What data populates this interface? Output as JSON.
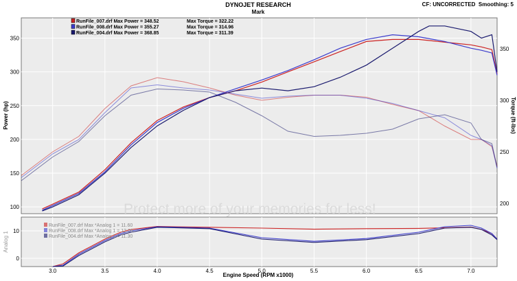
{
  "header": {
    "title": "DYNOJET RESEARCH",
    "subtitle": "Mark",
    "info": "CF: UNCORRECTED  Smoothing: 5"
  },
  "watermark": "Protect more of your memories for less!",
  "colors": {
    "run_007": "#cc2222",
    "run_008": "#3a3acc",
    "run_004": "#1a1a6e",
    "background": "#ffffff",
    "plot_bg": "#ececec",
    "grid": "#ffffff",
    "frame": "#777777"
  },
  "chart_data": [
    {
      "type": "line",
      "title": "DYNOJET RESEARCH",
      "xlabel": "Engine Speed (RPM x1000)",
      "ylabel": "Power (hp)",
      "y2label": "Torque (ft-lbs)",
      "xlim": [
        2.7,
        7.25
      ],
      "ylim": [
        90,
        380
      ],
      "y2lim": [
        190,
        380
      ],
      "x_ticks": [
        3.0,
        3.5,
        4.0,
        4.5,
        5.0,
        5.5,
        6.0,
        6.5,
        7.0
      ],
      "y_ticks": [
        100,
        150,
        200,
        250,
        300,
        350
      ],
      "y2_ticks": [
        200,
        250,
        300,
        350
      ],
      "grid": true,
      "legend": [
        {
          "label": "RunFile_007.drf Max Power = 348.52",
          "torque": "Max Torque = 322.22"
        },
        {
          "label": "RunFile_008.drf Max Power = 355.27",
          "torque": "Max Torque = 314.96"
        },
        {
          "label": "RunFile_004.drf Max Power = 368.85",
          "torque": "Max Torque = 311.39"
        }
      ],
      "legend_position": "top-left",
      "series": [
        {
          "name": "RunFile_007.drf",
          "kind": "Power",
          "axis": "left",
          "x": [
            2.9,
            3.0,
            3.25,
            3.5,
            3.75,
            4.0,
            4.25,
            4.5,
            4.75,
            5.0,
            5.25,
            5.5,
            5.75,
            6.0,
            6.25,
            6.5,
            6.75,
            7.0,
            7.1,
            7.2,
            7.25
          ],
          "y": [
            97,
            104,
            122,
            155,
            195,
            228,
            248,
            262,
            272,
            285,
            300,
            315,
            330,
            345,
            348,
            348,
            344,
            340,
            337,
            333,
            297
          ]
        },
        {
          "name": "RunFile_008.drf",
          "kind": "Power",
          "axis": "left",
          "x": [
            2.9,
            3.0,
            3.25,
            3.5,
            3.75,
            4.0,
            4.25,
            4.5,
            4.75,
            5.0,
            5.25,
            5.5,
            5.75,
            6.0,
            6.25,
            6.5,
            6.75,
            7.0,
            7.1,
            7.2,
            7.25
          ],
          "y": [
            95,
            102,
            120,
            152,
            192,
            225,
            246,
            262,
            275,
            288,
            302,
            318,
            335,
            348,
            355,
            352,
            345,
            335,
            332,
            328,
            295
          ]
        },
        {
          "name": "RunFile_004.drf",
          "kind": "Power",
          "axis": "left",
          "x": [
            2.9,
            3.0,
            3.25,
            3.5,
            3.75,
            4.0,
            4.25,
            4.5,
            4.75,
            5.0,
            5.25,
            5.5,
            5.75,
            6.0,
            6.25,
            6.5,
            6.6,
            6.75,
            7.0,
            7.1,
            7.2,
            7.25
          ],
          "y": [
            94,
            100,
            118,
            150,
            188,
            220,
            243,
            262,
            272,
            276,
            272,
            278,
            292,
            310,
            335,
            360,
            368,
            368,
            360,
            350,
            355,
            300
          ]
        },
        {
          "name": "RunFile_007.drf",
          "kind": "Torque",
          "axis": "right",
          "x": [
            2.7,
            3.0,
            3.25,
            3.5,
            3.75,
            4.0,
            4.25,
            4.5,
            4.75,
            5.0,
            5.25,
            5.5,
            5.75,
            6.0,
            6.25,
            6.5,
            6.75,
            7.0,
            7.1,
            7.2,
            7.25
          ],
          "y": [
            227,
            250,
            265,
            292,
            314,
            322,
            318,
            312,
            305,
            300,
            303,
            305,
            305,
            303,
            296,
            290,
            275,
            262,
            262,
            255,
            236
          ]
        },
        {
          "name": "RunFile_008.drf",
          "kind": "Torque",
          "axis": "right",
          "x": [
            2.7,
            3.0,
            3.25,
            3.5,
            3.75,
            4.0,
            4.25,
            4.5,
            4.75,
            5.0,
            5.25,
            5.5,
            5.75,
            6.0,
            6.25,
            6.5,
            6.75,
            7.0,
            7.1,
            7.2,
            7.25
          ],
          "y": [
            225,
            248,
            262,
            288,
            312,
            315,
            312,
            310,
            306,
            302,
            304,
            305,
            305,
            302,
            297,
            290,
            283,
            266,
            262,
            256,
            234
          ]
        },
        {
          "name": "RunFile_004.drf",
          "kind": "Torque",
          "axis": "right",
          "x": [
            2.7,
            3.0,
            3.25,
            3.5,
            3.75,
            4.0,
            4.25,
            4.5,
            4.75,
            5.0,
            5.25,
            5.5,
            5.75,
            6.0,
            6.25,
            6.5,
            6.75,
            7.0,
            7.1,
            7.2,
            7.25
          ],
          "y": [
            222,
            245,
            260,
            285,
            305,
            311,
            310,
            308,
            298,
            285,
            270,
            265,
            266,
            268,
            272,
            282,
            286,
            278,
            262,
            258,
            235
          ]
        }
      ]
    },
    {
      "type": "line",
      "ylabel": "Analog 1",
      "xlim": [
        2.7,
        7.25
      ],
      "ylim": [
        -3,
        15
      ],
      "y_ticks": [
        0,
        10
      ],
      "grid": true,
      "legend": [
        {
          "label": "RunFile_007.drf Max *Analog 1 = 11.60"
        },
        {
          "label": "RunFile_008.drf Max *Analog 1 = 12.09"
        },
        {
          "label": "RunFile_004.drf Max *Analog 1 = 11.30"
        }
      ],
      "legend_position": "top-left",
      "series": [
        {
          "name": "RunFile_007.drf",
          "x": [
            3.0,
            3.1,
            3.25,
            3.5,
            3.65,
            3.75,
            4.0,
            4.5,
            5.0,
            5.5,
            6.0,
            6.5,
            6.75,
            7.0,
            7.1,
            7.2,
            7.25
          ],
          "y": [
            -3,
            -2,
            2,
            7,
            9.5,
            10.5,
            11.6,
            11.3,
            11.0,
            10.6,
            10.8,
            10.9,
            11.1,
            11.4,
            10.5,
            9,
            7
          ]
        },
        {
          "name": "RunFile_008.drf",
          "x": [
            3.0,
            3.1,
            3.25,
            3.5,
            3.65,
            3.75,
            4.0,
            4.5,
            5.0,
            5.5,
            6.0,
            6.5,
            6.75,
            7.0,
            7.1,
            7.2,
            7.25
          ],
          "y": [
            -3,
            -2.5,
            1.5,
            6.5,
            9,
            10,
            11.5,
            11.0,
            7.5,
            6.2,
            7.2,
            9.5,
            11.5,
            12.0,
            11.0,
            9,
            7
          ]
        },
        {
          "name": "RunFile_004.drf",
          "x": [
            3.0,
            3.1,
            3.25,
            3.5,
            3.65,
            3.75,
            4.0,
            4.5,
            5.0,
            5.5,
            6.0,
            6.5,
            6.75,
            7.0,
            7.1,
            7.2,
            7.25
          ],
          "y": [
            -3,
            -2.8,
            1,
            6,
            8.5,
            9.5,
            11.3,
            10.8,
            7.0,
            5.8,
            6.8,
            9.0,
            11.0,
            11.3,
            10.5,
            8.5,
            6.8
          ]
        }
      ]
    }
  ]
}
